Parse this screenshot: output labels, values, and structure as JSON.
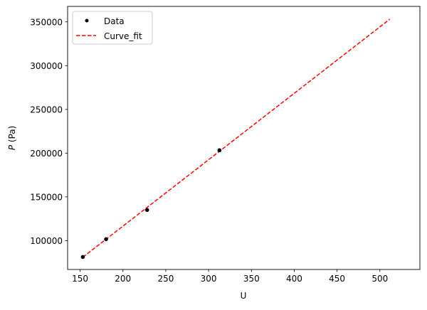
{
  "chart_data": {
    "type": "scatter",
    "title": "",
    "xlabel": "U",
    "ylabel_italic": "P",
    "ylabel_rest": " (Pa)",
    "xlim": [
      135.4,
      546.7
    ],
    "ylim": [
      67000,
      367700
    ],
    "xticks": [
      150,
      200,
      250,
      300,
      350,
      400,
      450,
      500
    ],
    "yticks": [
      100000,
      150000,
      200000,
      250000,
      300000,
      350000
    ],
    "grid": false,
    "legend_position": "top-left",
    "series": [
      {
        "name": "Data",
        "kind": "points",
        "color": "#000000",
        "x": [
          153.2,
          180.3,
          228.2,
          312.7
        ],
        "y": [
          81300,
          101600,
          135000,
          203250
        ]
      },
      {
        "name": "Curve_fit",
        "kind": "dashed-line",
        "color": "#ff0000",
        "x": [
          153.2,
          511.6
        ],
        "y": [
          81000,
          353100
        ]
      }
    ]
  }
}
